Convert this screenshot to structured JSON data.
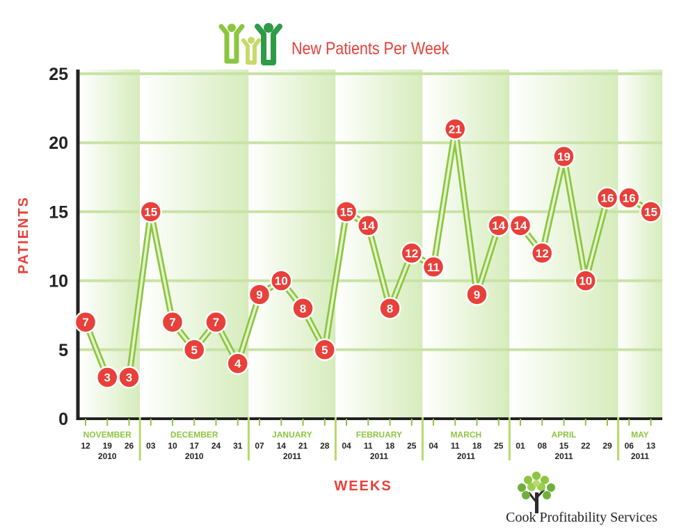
{
  "chart_data": {
    "type": "line",
    "title": "New Patients Per Week",
    "xlabel": "WEEKS",
    "ylabel": "PATIENTS",
    "ylim": [
      0,
      25
    ],
    "yticks": [
      0,
      5,
      10,
      15,
      20,
      25
    ],
    "grid": true,
    "points": [
      {
        "day": "12",
        "value": 7
      },
      {
        "day": "19",
        "value": 3
      },
      {
        "day": "26",
        "value": 3
      },
      {
        "day": "03",
        "value": 15
      },
      {
        "day": "10",
        "value": 7
      },
      {
        "day": "17",
        "value": 5
      },
      {
        "day": "24",
        "value": 7
      },
      {
        "day": "31",
        "value": 4
      },
      {
        "day": "07",
        "value": 9
      },
      {
        "day": "14",
        "value": 10
      },
      {
        "day": "21",
        "value": 8
      },
      {
        "day": "28",
        "value": 5
      },
      {
        "day": "04",
        "value": 15
      },
      {
        "day": "11",
        "value": 14
      },
      {
        "day": "18",
        "value": 8
      },
      {
        "day": "25",
        "value": 12
      },
      {
        "day": "04",
        "value": 11
      },
      {
        "day": "11",
        "value": 21
      },
      {
        "day": "18",
        "value": 9
      },
      {
        "day": "25",
        "value": 14
      },
      {
        "day": "01",
        "value": 14
      },
      {
        "day": "08",
        "value": 12
      },
      {
        "day": "15",
        "value": 19
      },
      {
        "day": "22",
        "value": 10
      },
      {
        "day": "29",
        "value": 16
      },
      {
        "day": "06",
        "value": 16
      },
      {
        "day": "13",
        "value": 15
      }
    ],
    "months": [
      {
        "name": "NOVEMBER",
        "year": "2010",
        "start": 0,
        "count": 3
      },
      {
        "name": "DECEMBER",
        "year": "2010",
        "start": 3,
        "count": 5
      },
      {
        "name": "JANUARY",
        "year": "2011",
        "start": 8,
        "count": 4
      },
      {
        "name": "FEBRUARY",
        "year": "2011",
        "start": 12,
        "count": 4
      },
      {
        "name": "MARCH",
        "year": "2011",
        "start": 16,
        "count": 4
      },
      {
        "name": "APRIL",
        "year": "2011",
        "start": 20,
        "count": 5
      },
      {
        "name": "MAY",
        "year": "2011",
        "start": 25,
        "count": 2
      }
    ]
  },
  "brand": {
    "name": "Cook Profitability Services"
  },
  "colors": {
    "accent": "#e8403a",
    "green": "#8cc63f",
    "darkgreen": "#2e9b47",
    "axis": "#222222"
  }
}
